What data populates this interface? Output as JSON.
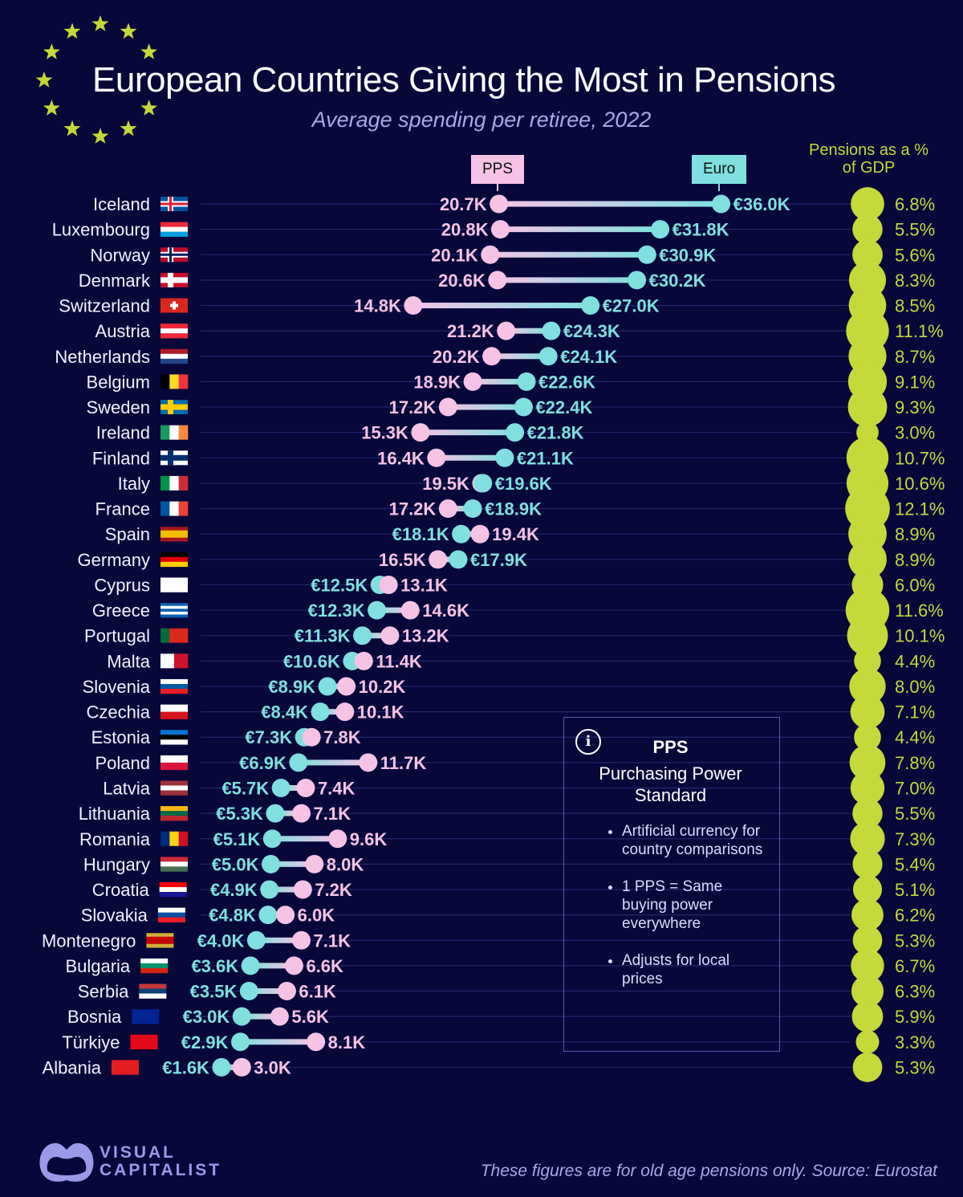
{
  "title": "European Countries Giving the Most in Pensions",
  "subtitle": "Average spending per retiree, 2022",
  "legend": {
    "pps": "PPS",
    "euro": "Euro",
    "gdp_header": "Pensions as a % of GDP"
  },
  "info_box": {
    "icon": "info-icon",
    "heading": "PPS",
    "subheading": "Purchasing Power Standard",
    "bullets": [
      "Artificial currency for country comparisons",
      "1 PPS = Same buying power everywhere",
      "Adjusts for local prices"
    ]
  },
  "footer": {
    "brand": "VISUAL CAPITALIST",
    "source": "These figures are for old age pensions only. Source: Eurostat"
  },
  "colors": {
    "background": "#07073a",
    "pps": "#f6c3e6",
    "euro": "#7fe0df",
    "gdp": "#c5d93a",
    "grid": "#27276a"
  },
  "chart_data": {
    "type": "dumbbell",
    "unit": "thousand",
    "series": [
      {
        "name": "PPS",
        "key": "pps"
      },
      {
        "name": "Euro",
        "key": "euro"
      },
      {
        "name": "Pensions as a % of GDP",
        "key": "gdp"
      }
    ],
    "rows": [
      {
        "country": "Iceland",
        "pps": 20.7,
        "euro": 36.0,
        "gdp": 6.8,
        "flag": {
          "t": "nordic",
          "c": [
            "#02529c",
            "#ffffff",
            "#dc1e35"
          ]
        }
      },
      {
        "country": "Luxembourg",
        "pps": 20.8,
        "euro": 31.8,
        "gdp": 5.5,
        "flag": {
          "t": "h",
          "c": [
            "#ed2939",
            "#ffffff",
            "#00a1de"
          ]
        }
      },
      {
        "country": "Norway",
        "pps": 20.1,
        "euro": 30.9,
        "gdp": 5.6,
        "flag": {
          "t": "nordic",
          "c": [
            "#ba0c2f",
            "#ffffff",
            "#00205b"
          ]
        }
      },
      {
        "country": "Denmark",
        "pps": 20.6,
        "euro": 30.2,
        "gdp": 8.3,
        "flag": {
          "t": "nordic",
          "c": [
            "#c8102e",
            "#ffffff",
            "#ffffff"
          ]
        }
      },
      {
        "country": "Switzerland",
        "pps": 14.8,
        "euro": 27.0,
        "gdp": 8.5,
        "flag": {
          "t": "cross",
          "c": [
            "#da291c",
            "#ffffff"
          ]
        }
      },
      {
        "country": "Austria",
        "pps": 21.2,
        "euro": 24.3,
        "gdp": 11.1,
        "flag": {
          "t": "h",
          "c": [
            "#ed2939",
            "#ffffff",
            "#ed2939"
          ]
        }
      },
      {
        "country": "Netherlands",
        "pps": 20.2,
        "euro": 24.1,
        "gdp": 8.7,
        "flag": {
          "t": "h",
          "c": [
            "#ae1c28",
            "#ffffff",
            "#21468b"
          ]
        }
      },
      {
        "country": "Belgium",
        "pps": 18.9,
        "euro": 22.6,
        "gdp": 9.1,
        "flag": {
          "t": "v",
          "c": [
            "#000000",
            "#fdda24",
            "#ef3340"
          ]
        }
      },
      {
        "country": "Sweden",
        "pps": 17.2,
        "euro": 22.4,
        "gdp": 9.3,
        "flag": {
          "t": "nordic",
          "c": [
            "#006aa7",
            "#fecc00",
            "#fecc00"
          ]
        }
      },
      {
        "country": "Ireland",
        "pps": 15.3,
        "euro": 21.8,
        "gdp": 3.0,
        "flag": {
          "t": "v",
          "c": [
            "#169b62",
            "#ffffff",
            "#ff883e"
          ]
        }
      },
      {
        "country": "Finland",
        "pps": 16.4,
        "euro": 21.1,
        "gdp": 10.7,
        "flag": {
          "t": "nordic",
          "c": [
            "#ffffff",
            "#002f6c",
            "#002f6c"
          ]
        }
      },
      {
        "country": "Italy",
        "pps": 19.5,
        "euro": 19.6,
        "gdp": 10.6,
        "flag": {
          "t": "v",
          "c": [
            "#009246",
            "#ffffff",
            "#ce2b37"
          ]
        }
      },
      {
        "country": "France",
        "pps": 17.2,
        "euro": 18.9,
        "gdp": 12.1,
        "flag": {
          "t": "v",
          "c": [
            "#0055a4",
            "#ffffff",
            "#ef4135"
          ]
        }
      },
      {
        "country": "Spain",
        "pps": 19.4,
        "euro": 18.1,
        "gdp": 8.9,
        "flag": {
          "t": "h",
          "c": [
            "#aa151b",
            "#f1bf00",
            "#f1bf00",
            "#aa151b"
          ]
        }
      },
      {
        "country": "Germany",
        "pps": 16.5,
        "euro": 17.9,
        "gdp": 8.9,
        "flag": {
          "t": "h",
          "c": [
            "#000000",
            "#dd0000",
            "#ffce00"
          ]
        }
      },
      {
        "country": "Cyprus",
        "pps": 13.1,
        "euro": 12.5,
        "gdp": 6.0,
        "flag": {
          "t": "h",
          "c": [
            "#ffffff"
          ]
        }
      },
      {
        "country": "Greece",
        "pps": 14.6,
        "euro": 12.3,
        "gdp": 11.6,
        "flag": {
          "t": "h",
          "c": [
            "#0d5eaf",
            "#ffffff",
            "#0d5eaf",
            "#ffffff",
            "#0d5eaf"
          ]
        }
      },
      {
        "country": "Portugal",
        "pps": 13.2,
        "euro": 11.3,
        "gdp": 10.1,
        "flag": {
          "t": "v",
          "c": [
            "#046a38",
            "#da291c",
            "#da291c"
          ]
        }
      },
      {
        "country": "Malta",
        "pps": 11.4,
        "euro": 10.6,
        "gdp": 4.4,
        "flag": {
          "t": "v",
          "c": [
            "#ffffff",
            "#cf142b"
          ]
        }
      },
      {
        "country": "Slovenia",
        "pps": 10.2,
        "euro": 8.9,
        "gdp": 8.0,
        "flag": {
          "t": "h",
          "c": [
            "#ffffff",
            "#005da4",
            "#ed1c24"
          ]
        }
      },
      {
        "country": "Czechia",
        "pps": 10.1,
        "euro": 8.4,
        "gdp": 7.1,
        "flag": {
          "t": "h",
          "c": [
            "#ffffff",
            "#d7141a"
          ]
        }
      },
      {
        "country": "Estonia",
        "pps": 7.8,
        "euro": 7.3,
        "gdp": 4.4,
        "flag": {
          "t": "h",
          "c": [
            "#0072ce",
            "#000000",
            "#ffffff"
          ]
        }
      },
      {
        "country": "Poland",
        "pps": 11.7,
        "euro": 6.9,
        "gdp": 7.8,
        "flag": {
          "t": "h",
          "c": [
            "#ffffff",
            "#dc143c"
          ]
        }
      },
      {
        "country": "Latvia",
        "pps": 7.4,
        "euro": 5.7,
        "gdp": 7.0,
        "flag": {
          "t": "h",
          "c": [
            "#9e3039",
            "#ffffff",
            "#9e3039"
          ]
        }
      },
      {
        "country": "Lithuania",
        "pps": 7.1,
        "euro": 5.3,
        "gdp": 5.5,
        "flag": {
          "t": "h",
          "c": [
            "#fdb913",
            "#006a44",
            "#c1272d"
          ]
        }
      },
      {
        "country": "Romania",
        "pps": 9.6,
        "euro": 5.1,
        "gdp": 7.3,
        "flag": {
          "t": "v",
          "c": [
            "#002b7f",
            "#fcd116",
            "#ce1126"
          ]
        }
      },
      {
        "country": "Hungary",
        "pps": 8.0,
        "euro": 5.0,
        "gdp": 5.4,
        "flag": {
          "t": "h",
          "c": [
            "#ce2939",
            "#ffffff",
            "#477050"
          ]
        }
      },
      {
        "country": "Croatia",
        "pps": 7.2,
        "euro": 4.9,
        "gdp": 5.1,
        "flag": {
          "t": "h",
          "c": [
            "#ff0000",
            "#ffffff",
            "#171796"
          ]
        }
      },
      {
        "country": "Slovakia",
        "pps": 6.0,
        "euro": 4.8,
        "gdp": 6.2,
        "flag": {
          "t": "h",
          "c": [
            "#ffffff",
            "#0b4ea2",
            "#ee1c25"
          ]
        }
      },
      {
        "country": "Montenegro",
        "pps": 7.1,
        "euro": 4.0,
        "gdp": 5.3,
        "flag": {
          "t": "h",
          "c": [
            "#d3ae3b",
            "#c40308",
            "#c40308",
            "#d3ae3b"
          ]
        }
      },
      {
        "country": "Bulgaria",
        "pps": 6.6,
        "euro": 3.6,
        "gdp": 6.7,
        "flag": {
          "t": "h",
          "c": [
            "#ffffff",
            "#00966e",
            "#d62612"
          ]
        }
      },
      {
        "country": "Serbia",
        "pps": 6.1,
        "euro": 3.5,
        "gdp": 6.3,
        "flag": {
          "t": "h",
          "c": [
            "#c6363c",
            "#0c4076",
            "#ffffff"
          ]
        }
      },
      {
        "country": "Bosnia",
        "pps": 5.6,
        "euro": 3.0,
        "gdp": 5.9,
        "flag": {
          "t": "h",
          "c": [
            "#002395"
          ]
        }
      },
      {
        "country": "Türkiye",
        "pps": 8.1,
        "euro": 2.9,
        "gdp": 3.3,
        "flag": {
          "t": "h",
          "c": [
            "#e30a17"
          ]
        }
      },
      {
        "country": "Albania",
        "pps": 3.0,
        "euro": 1.6,
        "gdp": 5.3,
        "flag": {
          "t": "h",
          "c": [
            "#e41e20"
          ]
        }
      }
    ]
  }
}
